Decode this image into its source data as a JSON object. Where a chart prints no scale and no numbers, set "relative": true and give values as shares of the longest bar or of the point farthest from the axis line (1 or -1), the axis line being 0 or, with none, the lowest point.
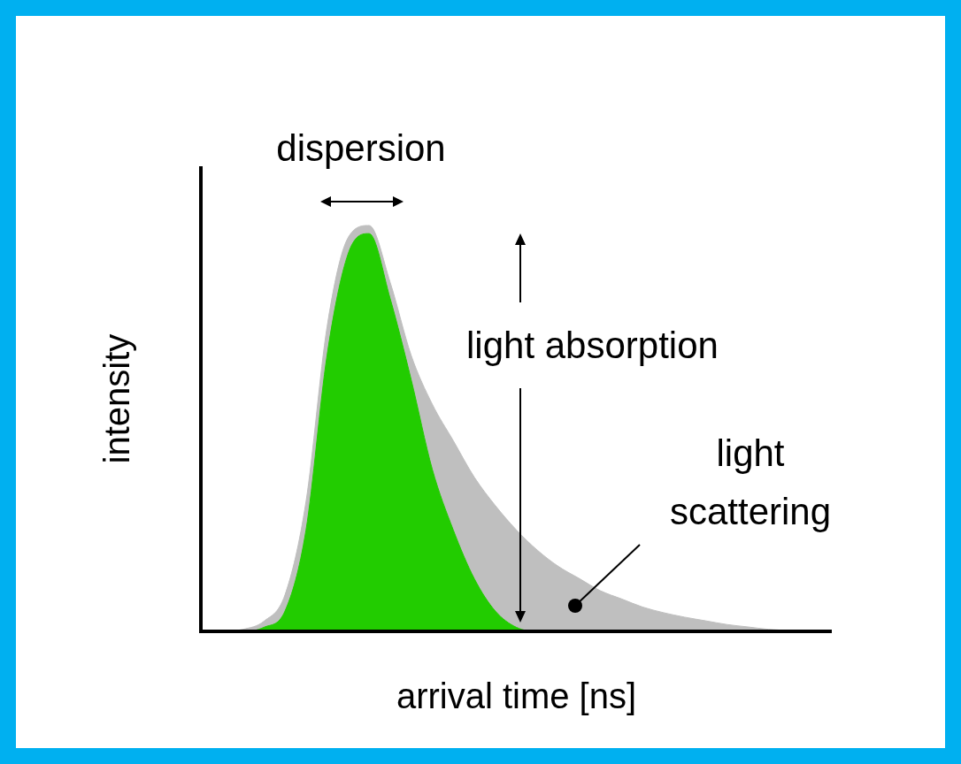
{
  "chart_data": {
    "type": "area",
    "relative": true,
    "xlabel": "arrival time [ns]",
    "ylabel": "intensity",
    "categories": [
      null,
      null,
      null,
      null,
      null,
      null,
      null,
      null,
      null,
      null,
      null,
      null,
      null,
      null,
      null,
      null,
      null,
      null,
      null,
      null,
      null,
      null,
      null,
      null,
      null,
      null,
      null,
      null,
      null,
      null,
      null
    ],
    "series": [
      {
        "color": "#22cc00",
        "values": [
          0,
          0,
          0,
          0.01,
          0.05,
          0.25,
          0.68,
          0.93,
          0.98,
          0.82,
          0.62,
          0.4,
          0.25,
          0.13,
          0.05,
          0.01,
          0,
          0,
          0,
          0,
          0,
          0,
          0,
          0,
          0,
          0,
          0,
          0,
          0,
          0,
          0
        ]
      },
      {
        "color": "#bfbfbf",
        "values": [
          0,
          0,
          0.005,
          0.025,
          0.09,
          0.32,
          0.75,
          0.97,
          1,
          0.86,
          0.68,
          0.56,
          0.47,
          0.38,
          0.31,
          0.25,
          0.2,
          0.16,
          0.13,
          0.1,
          0.08,
          0.06,
          0.046,
          0.035,
          0.026,
          0.017,
          0.011,
          0.005,
          0.002,
          0,
          0
        ]
      }
    ],
    "annotations": [
      "dispersion",
      "light absorption",
      "light scattering"
    ]
  }
}
